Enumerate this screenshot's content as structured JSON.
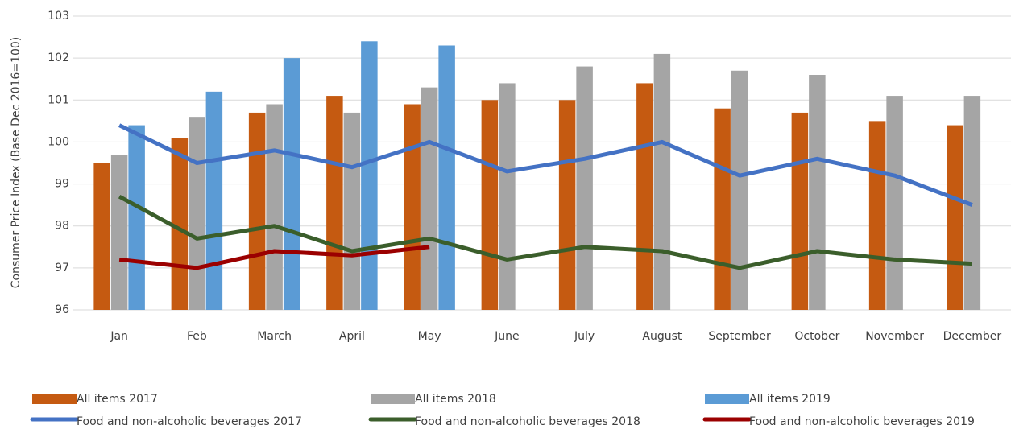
{
  "chart_data": {
    "type": "combo",
    "y_label": "Consumer Price Index (Base Dec 2016=100)",
    "categories": [
      "Jan",
      "Feb",
      "March",
      "April",
      "May",
      "June",
      "July",
      "August",
      "September",
      "October",
      "November",
      "December"
    ],
    "series": [
      {
        "name": "All items 2017",
        "type": "bar",
        "color": "#c55a11",
        "values": [
          99.5,
          100.1,
          100.7,
          101.1,
          100.9,
          101.0,
          101.0,
          101.4,
          100.8,
          100.7,
          100.5,
          100.4
        ]
      },
      {
        "name": "All items 2018",
        "type": "bar",
        "color": "#a5a5a5",
        "values": [
          99.7,
          100.6,
          100.9,
          100.7,
          101.3,
          101.4,
          101.8,
          102.1,
          101.7,
          101.6,
          101.1,
          101.1
        ]
      },
      {
        "name": "All items 2019",
        "type": "bar",
        "color": "#5b9bd5",
        "values": [
          100.4,
          101.2,
          102.0,
          102.4,
          102.3,
          null,
          null,
          null,
          null,
          null,
          null,
          null
        ]
      },
      {
        "name": "Food and non-alcoholic beverages 2017",
        "type": "line",
        "color": "#4472c4",
        "values": [
          100.4,
          99.5,
          99.8,
          99.4,
          100.0,
          99.3,
          99.6,
          100.0,
          99.2,
          99.6,
          99.2,
          98.5
        ]
      },
      {
        "name": "Food and non-alcoholic beverages 2018",
        "type": "line",
        "color": "#3b5e2b",
        "values": [
          98.7,
          97.7,
          98.0,
          97.4,
          97.7,
          97.2,
          97.5,
          97.4,
          97.0,
          97.4,
          97.2,
          97.1
        ]
      },
      {
        "name": "Food and non-alcoholic beverages 2019",
        "type": "line",
        "color": "#9b0000",
        "values": [
          97.2,
          97.0,
          97.4,
          97.3,
          97.5,
          null,
          null,
          null,
          null,
          null,
          null,
          null
        ]
      }
    ],
    "ylim": [
      96,
      103
    ],
    "yticks": [
      96,
      97,
      98,
      99,
      100,
      101,
      102,
      103
    ],
    "grid": true,
    "legend": "bottom"
  }
}
